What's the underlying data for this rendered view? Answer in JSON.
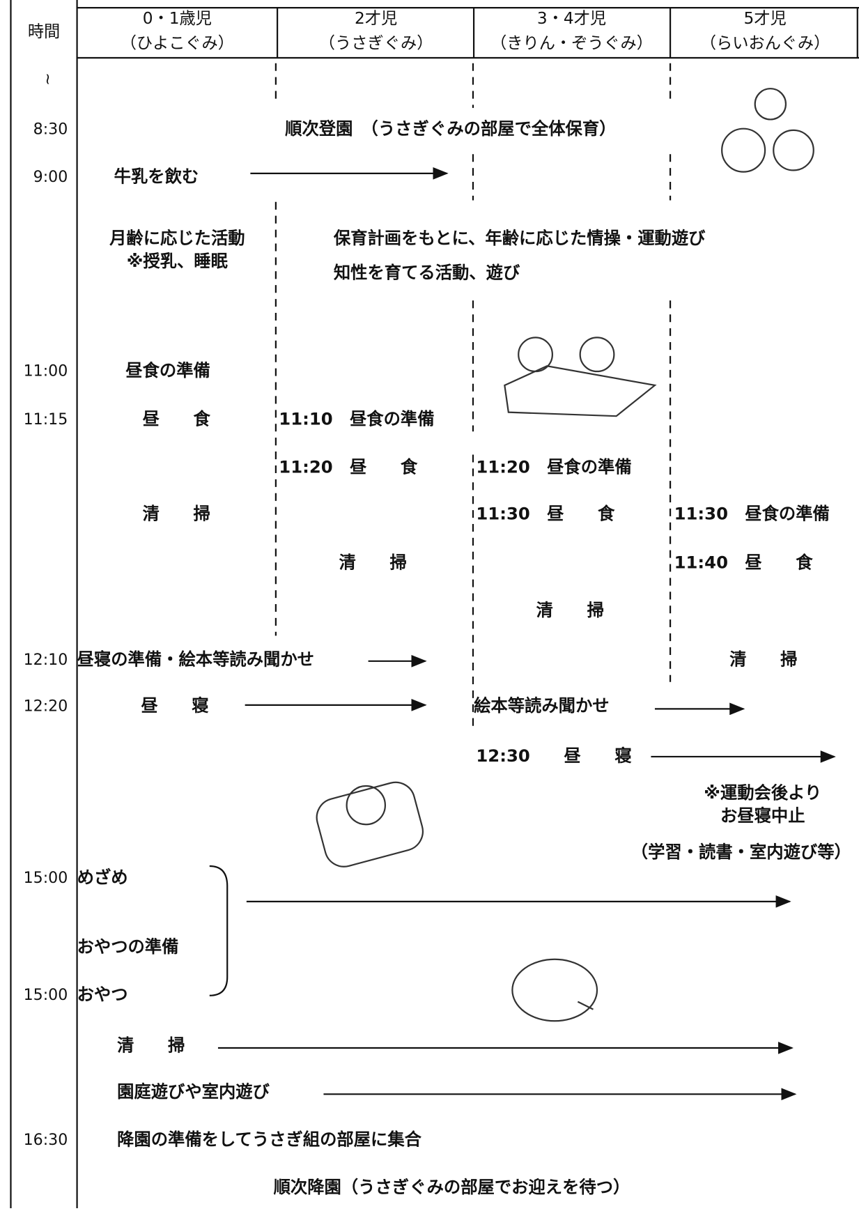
{
  "header": {
    "time_label": "時間",
    "columns": [
      {
        "name": "0・1歳児",
        "group": "（ひよこぐみ）"
      },
      {
        "name": "2才児",
        "group": "（うさぎぐみ）"
      },
      {
        "name": "3・4才児",
        "group": "（きりん・ぞうぐみ）"
      },
      {
        "name": "5才児",
        "group": "（らいおんぐみ）"
      }
    ]
  },
  "times": [
    "≀",
    "8:30",
    "9:00",
    "11:00",
    "11:15",
    "12:10",
    "12:20",
    "15:00",
    "15:00",
    "16:30"
  ],
  "entries": [
    "順次登園　（うさぎぐみの部屋で全体保育）",
    "牛乳を飲む",
    "月齢に応じた活動",
    "※授乳、睡眠",
    "保育計画をもとに、年齢に応じた情操・運動遊び",
    "知性を育てる活動、遊び",
    "昼食の準備",
    "昼　　食",
    "11:10　昼食の準備",
    "11:20　昼　　食",
    "清　　掃",
    "11:20　昼食の準備",
    "11:30　昼　　食",
    "11:30　昼食の準備",
    "11:40　昼　　食",
    "清　　掃",
    "清　　掃",
    "昼寝の準備・絵本等読み聞かせ",
    "清　　掃",
    "昼　　寝",
    "絵本等読み聞かせ",
    "12:30　　昼　　寝",
    "※運動会後より",
    "お昼寝中止",
    "（学習・読書・室内遊び等）",
    "めざめ",
    "おやつの準備",
    "おやつ",
    "清　　掃",
    "園庭遊びや室内遊び",
    "降園の準備をしてうさぎ組の部屋に集合",
    "順次降園（うさぎぐみの部屋でお迎えを待つ）"
  ]
}
